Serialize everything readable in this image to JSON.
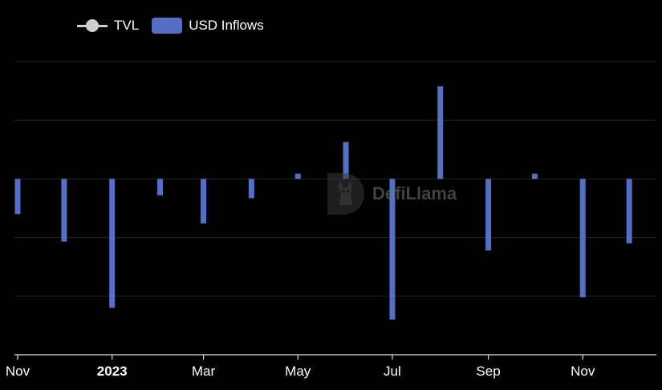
{
  "legend": {
    "tvl_label": "TVL",
    "inflows_label": "USD Inflows"
  },
  "watermark": {
    "text": "DefiLlama"
  },
  "colors": {
    "background": "#000000",
    "bar": "#5470c6",
    "grid": "#262626",
    "axis": "#d9d9d9",
    "tvl_line": "#cfcfcf"
  },
  "chart_data": {
    "type": "bar",
    "x_ticks": [
      {
        "label": "Nov",
        "date": "2022-11-01",
        "bold": false
      },
      {
        "label": "2023",
        "date": "2023-01-01",
        "bold": true
      },
      {
        "label": "Mar",
        "date": "2023-03-01",
        "bold": false
      },
      {
        "label": "May",
        "date": "2023-05-01",
        "bold": false
      },
      {
        "label": "Jul",
        "date": "2023-07-01",
        "bold": false
      },
      {
        "label": "Sep",
        "date": "2023-09-01",
        "bold": false
      },
      {
        "label": "Nov",
        "date": "2023-11-01",
        "bold": false
      }
    ],
    "x_range": [
      "2022-11-01",
      "2023-12-17"
    ],
    "y_range": [
      -3,
      2
    ],
    "y_gridlines": [
      -2,
      -1,
      0,
      1,
      2
    ],
    "series": [
      {
        "type": "bar",
        "x": [
          "2022-11-01",
          "2022-12-01",
          "2023-01-01",
          "2023-02-01",
          "2023-03-01",
          "2023-04-01",
          "2023-05-01",
          "2023-06-01",
          "2023-07-01",
          "2023-08-01",
          "2023-09-01",
          "2023-10-01",
          "2023-11-01",
          "2023-12-01"
        ],
        "values": [
          -0.6,
          -1.07,
          -2.2,
          -0.28,
          -0.76,
          -0.33,
          0.09,
          0.63,
          -2.4,
          1.58,
          -1.22,
          0.09,
          -2.02,
          -1.1
        ]
      }
    ]
  }
}
